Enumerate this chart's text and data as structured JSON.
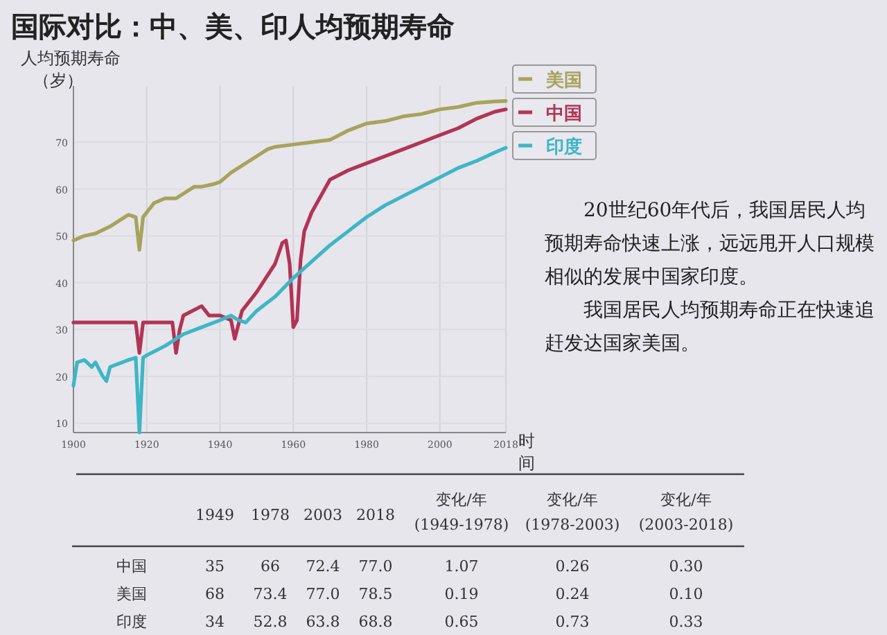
{
  "chart_data": [
    {
      "type": "line",
      "title": "国际对比：中、美、印人均预期寿命",
      "ylabel": "人均预期寿命（岁）",
      "xlabel": "时间",
      "xlim": [
        1900,
        2018
      ],
      "xticks": [
        1900,
        1920,
        1940,
        1960,
        1980,
        2000,
        2018
      ],
      "ylim": [
        8,
        82
      ],
      "yticks": [
        10,
        20,
        30,
        40,
        50,
        60,
        70
      ],
      "grid": true,
      "legend": "right",
      "line_style": "solid",
      "series": [
        {
          "name": "美国",
          "color": "#a8a35c",
          "x": [
            1900,
            1903,
            1906,
            1910,
            1913,
            1915,
            1917,
            1918,
            1919,
            1920,
            1922,
            1925,
            1928,
            1930,
            1933,
            1935,
            1938,
            1940,
            1943,
            1945,
            1948,
            1950,
            1953,
            1955,
            1960,
            1965,
            1970,
            1975,
            1980,
            1985,
            1990,
            1995,
            2000,
            2005,
            2010,
            2015,
            2018
          ],
          "values": [
            49,
            50,
            50.5,
            52,
            53.5,
            54.5,
            54,
            47,
            54,
            55,
            57,
            58,
            58,
            59,
            60.5,
            60.5,
            61,
            61.5,
            63.5,
            64.5,
            66,
            67,
            68.5,
            69,
            69.5,
            70,
            70.5,
            72.5,
            74,
            74.5,
            75.5,
            76,
            77,
            77.5,
            78.4,
            78.7,
            78.8
          ]
        },
        {
          "name": "中国",
          "color": "#b23455",
          "x": [
            1900,
            1917,
            1918,
            1919,
            1927,
            1928,
            1929,
            1930,
            1935,
            1937,
            1940,
            1943,
            1944,
            1946,
            1950,
            1955,
            1957,
            1958,
            1959,
            1960,
            1961,
            1962,
            1963,
            1965,
            1970,
            1975,
            1980,
            1985,
            1990,
            1995,
            2000,
            2005,
            2010,
            2015,
            2018
          ],
          "values": [
            31.5,
            31.5,
            25,
            31.5,
            31.5,
            25,
            30,
            33,
            35,
            33,
            33,
            32,
            28,
            34,
            38,
            44,
            48.5,
            49,
            44,
            30.5,
            32,
            45,
            51,
            55,
            62,
            64,
            65.5,
            67,
            68.5,
            70,
            71.5,
            73,
            75,
            76.5,
            77
          ]
        },
        {
          "name": "印度",
          "color": "#3fb6c6",
          "x": [
            1900,
            1901,
            1903,
            1905,
            1906,
            1908,
            1909,
            1910,
            1915,
            1917,
            1918,
            1919,
            1920,
            1925,
            1928,
            1930,
            1935,
            1940,
            1943,
            1945,
            1947,
            1950,
            1955,
            1960,
            1965,
            1970,
            1975,
            1980,
            1985,
            1990,
            1995,
            2000,
            2005,
            2010,
            2015,
            2018
          ],
          "values": [
            18,
            23,
            23.5,
            22,
            23,
            20,
            19,
            22,
            23.5,
            24,
            8,
            24,
            24.5,
            26.5,
            28,
            29,
            30.5,
            32,
            33,
            32,
            31.5,
            34,
            37,
            41,
            44.5,
            48,
            51,
            54,
            56.5,
            58.5,
            60.5,
            62.5,
            64.5,
            66,
            67.8,
            68.8
          ]
        }
      ]
    },
    {
      "type": "other",
      "annotations": [
        "20世纪60年代后，我国居民人均预期寿命快速上涨，远远甩开人口规模相似的发展中国家印度。",
        "我国居民人均预期寿命正在快速追赶发达国家美国。"
      ]
    },
    {
      "type": "other",
      "categories": [
        "1949",
        "1978",
        "2003",
        "2018",
        "变化/年\n(1949-1978)",
        "变化/年\n(1978-2003)",
        "变化/年\n(2003-2018)"
      ],
      "y_categories": [
        "中国",
        "美国",
        "印度"
      ],
      "cell_labels": [
        [
          "35",
          "66",
          "72.4",
          "77.0",
          "1.07",
          "0.26",
          "0.30"
        ],
        [
          "68",
          "73.4",
          "77.0",
          "78.5",
          "0.19",
          "0.24",
          "0.10"
        ],
        [
          "34",
          "52.8",
          "63.8",
          "68.8",
          "0.65",
          "0.73",
          "0.33"
        ]
      ]
    }
  ]
}
